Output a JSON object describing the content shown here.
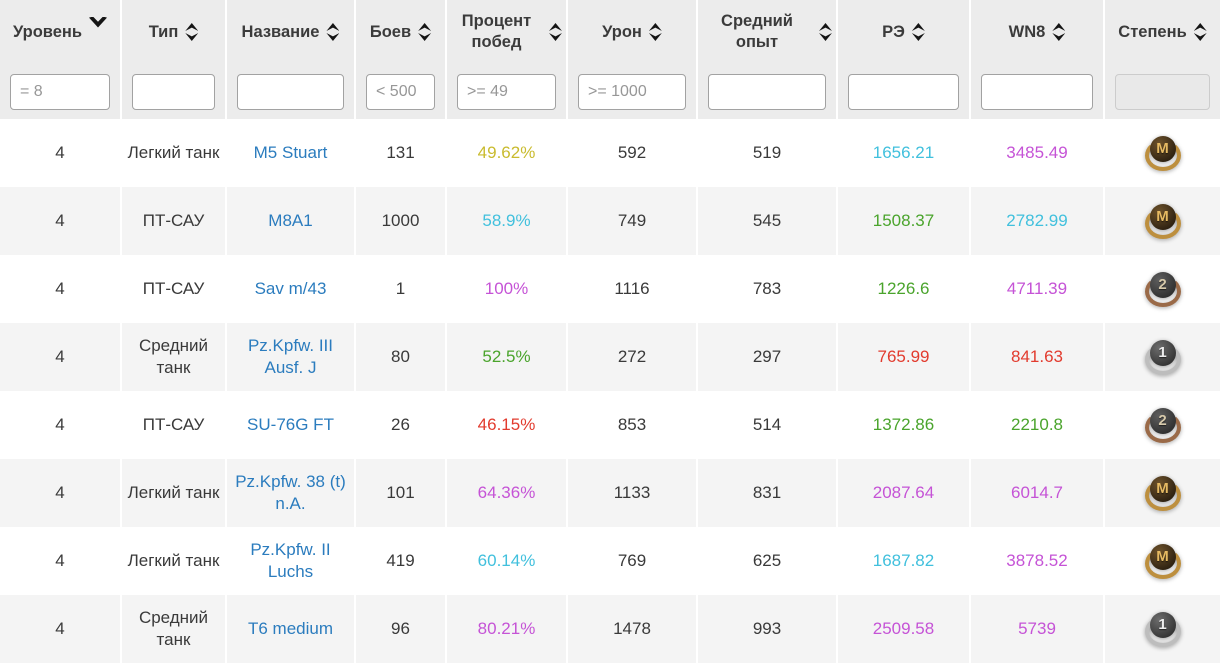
{
  "table": {
    "columns": [
      {
        "key": "level",
        "label": "Уровень",
        "sort": "desc",
        "filter": {
          "placeholder": "= 8",
          "disabled": false
        }
      },
      {
        "key": "type",
        "label": "Тип",
        "sort": "both",
        "filter": {
          "placeholder": "",
          "disabled": false
        }
      },
      {
        "key": "name",
        "label": "Название",
        "sort": "both",
        "filter": {
          "placeholder": "",
          "disabled": false
        }
      },
      {
        "key": "battles",
        "label": "Боев",
        "sort": "both",
        "filter": {
          "placeholder": "< 500",
          "disabled": false
        }
      },
      {
        "key": "winrate",
        "label": "Процент побед",
        "sort": "both",
        "filter": {
          "placeholder": ">= 49",
          "disabled": false
        }
      },
      {
        "key": "damage",
        "label": "Урон",
        "sort": "both",
        "filter": {
          "placeholder": ">= 1000",
          "disabled": false
        }
      },
      {
        "key": "avgxp",
        "label": "Средний опыт",
        "sort": "both",
        "filter": {
          "placeholder": "",
          "disabled": false
        }
      },
      {
        "key": "re",
        "label": "РЭ",
        "sort": "both",
        "filter": {
          "placeholder": "",
          "disabled": false
        }
      },
      {
        "key": "wn8",
        "label": "WN8",
        "sort": "both",
        "filter": {
          "placeholder": "",
          "disabled": false
        }
      },
      {
        "key": "mastery",
        "label": "Степень",
        "sort": "both",
        "filter": {
          "placeholder": "",
          "disabled": true
        }
      }
    ],
    "rows": [
      {
        "level": "4",
        "type": "Легкий танк",
        "name": "M5 Stuart",
        "battles": "131",
        "winrate": {
          "text": "49.62%",
          "tone": "yellow"
        },
        "damage": "592",
        "avgxp": "519",
        "re": {
          "text": "1656.21",
          "tone": "cyan"
        },
        "wn8": {
          "text": "3485.49",
          "tone": "purple"
        },
        "mastery": "M"
      },
      {
        "level": "4",
        "type": "ПТ-САУ",
        "name": "M8A1",
        "battles": "1000",
        "winrate": {
          "text": "58.9%",
          "tone": "cyan"
        },
        "damage": "749",
        "avgxp": "545",
        "re": {
          "text": "1508.37",
          "tone": "green"
        },
        "wn8": {
          "text": "2782.99",
          "tone": "cyan"
        },
        "mastery": "M"
      },
      {
        "level": "4",
        "type": "ПТ-САУ",
        "name": "Sav m/43",
        "battles": "1",
        "winrate": {
          "text": "100%",
          "tone": "purple"
        },
        "damage": "1116",
        "avgxp": "783",
        "re": {
          "text": "1226.6",
          "tone": "green"
        },
        "wn8": {
          "text": "4711.39",
          "tone": "purple"
        },
        "mastery": "2"
      },
      {
        "level": "4",
        "type": "Средний танк",
        "name": "Pz.Kpfw. III Ausf. J",
        "battles": "80",
        "winrate": {
          "text": "52.5%",
          "tone": "green"
        },
        "damage": "272",
        "avgxp": "297",
        "re": {
          "text": "765.99",
          "tone": "red"
        },
        "wn8": {
          "text": "841.63",
          "tone": "red"
        },
        "mastery": "1"
      },
      {
        "level": "4",
        "type": "ПТ-САУ",
        "name": "SU-76G FT",
        "battles": "26",
        "winrate": {
          "text": "46.15%",
          "tone": "red"
        },
        "damage": "853",
        "avgxp": "514",
        "re": {
          "text": "1372.86",
          "tone": "green"
        },
        "wn8": {
          "text": "2210.8",
          "tone": "green"
        },
        "mastery": "2"
      },
      {
        "level": "4",
        "type": "Легкий танк",
        "name": "Pz.Kpfw. 38 (t) n.A.",
        "battles": "101",
        "winrate": {
          "text": "64.36%",
          "tone": "purple"
        },
        "damage": "1133",
        "avgxp": "831",
        "re": {
          "text": "2087.64",
          "tone": "purple"
        },
        "wn8": {
          "text": "6014.7",
          "tone": "purple"
        },
        "mastery": "M"
      },
      {
        "level": "4",
        "type": "Легкий танк",
        "name": "Pz.Kpfw. II Luchs",
        "battles": "419",
        "winrate": {
          "text": "60.14%",
          "tone": "cyan"
        },
        "damage": "769",
        "avgxp": "625",
        "re": {
          "text": "1687.82",
          "tone": "cyan"
        },
        "wn8": {
          "text": "3878.52",
          "tone": "purple"
        },
        "mastery": "M"
      },
      {
        "level": "4",
        "type": "Средний танк",
        "name": "T6 medium",
        "battles": "96",
        "winrate": {
          "text": "80.21%",
          "tone": "purple"
        },
        "damage": "1478",
        "avgxp": "993",
        "re": {
          "text": "2509.58",
          "tone": "purple"
        },
        "wn8": {
          "text": "5739",
          "tone": "purple"
        },
        "mastery": "1"
      }
    ],
    "tones": {
      "yellow": "#c9bb2e",
      "cyan": "#41c0dd",
      "green": "#4aa42c",
      "red": "#e23b2e",
      "purple": "#c553d6",
      "link": "#2b7cbe"
    },
    "mastery_badges": {
      "M": {
        "letter": "M",
        "style": "gold"
      },
      "1": {
        "letter": "1",
        "style": "class1"
      },
      "2": {
        "letter": "2",
        "style": "class2"
      }
    }
  }
}
